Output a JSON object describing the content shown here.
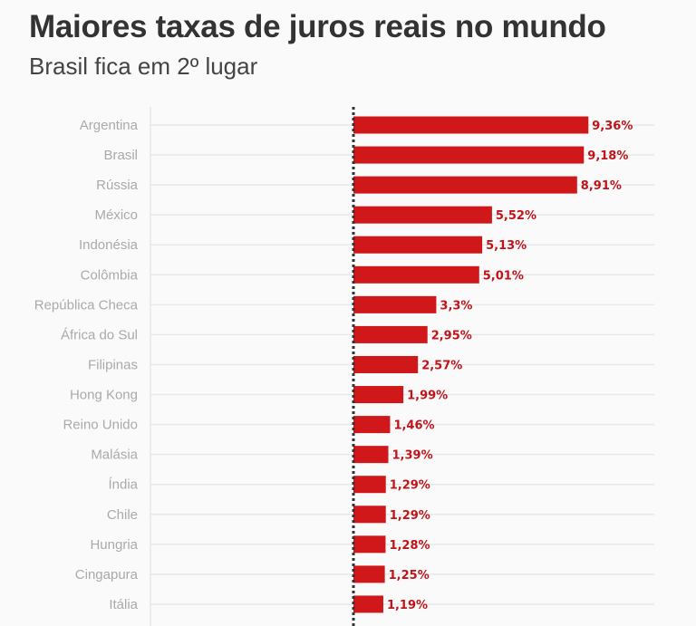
{
  "chart_data": {
    "type": "bar",
    "orientation": "horizontal",
    "title": "Maiores taxas de juros reais no mundo",
    "subtitle": "Brasil fica em 2º lugar",
    "categories": [
      "Argentina",
      "Brasil",
      "Rússia",
      "México",
      "Indonésia",
      "Colômbia",
      "República Checa",
      "África do Sul",
      "Filipinas",
      "Hong Kong",
      "Reino Unido",
      "Malásia",
      "Índia",
      "Chile",
      "Hungria",
      "Cingapura",
      "Itália"
    ],
    "values": [
      9.36,
      9.18,
      8.91,
      5.52,
      5.13,
      5.01,
      3.3,
      2.95,
      2.57,
      1.99,
      1.46,
      1.39,
      1.29,
      1.29,
      1.28,
      1.25,
      1.19
    ],
    "data_labels": [
      "9,36%",
      "9,18%",
      "8,91%",
      "5,52%",
      "5,13%",
      "5,01%",
      "3,3%",
      "2,95%",
      "2,57%",
      "1,99%",
      "1,46%",
      "1,39%",
      "1,29%",
      "1,29%",
      "1,28%",
      "1,25%",
      "1,19%"
    ],
    "xlim": [
      0,
      10
    ],
    "grid": true,
    "zero_line": "dotted",
    "colors": {
      "bar": "#d0181b",
      "label": "#c0141a",
      "category": "#aaaaaa",
      "grid": "#e8e8e8"
    }
  }
}
